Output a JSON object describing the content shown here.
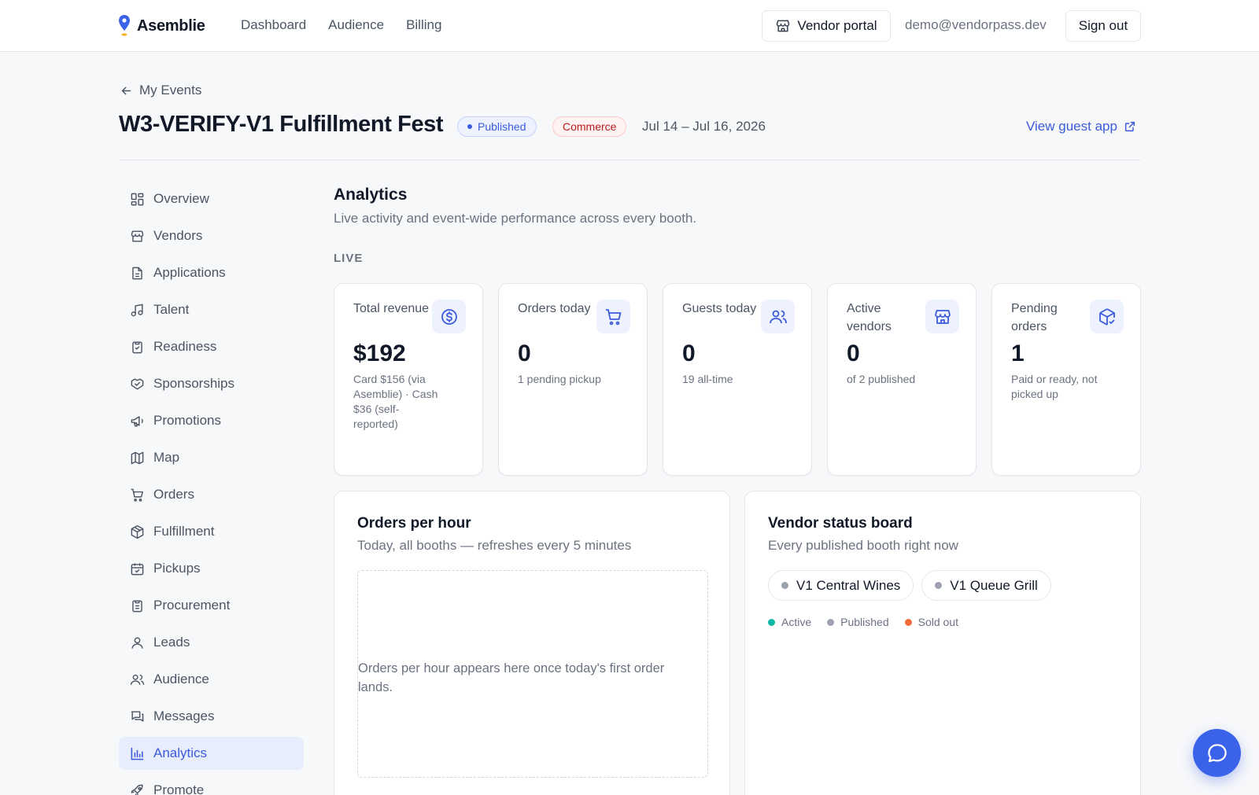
{
  "app": {
    "brand": "Asemblie",
    "nav": [
      "Dashboard",
      "Audience",
      "Billing"
    ],
    "vendor_portal_label": "Vendor portal",
    "user_email": "demo@vendorpass.dev",
    "sign_out_label": "Sign out"
  },
  "header": {
    "back_label": "My Events",
    "title": "W3-VERIFY-V1 Fulfillment Fest",
    "status_badge": "Published",
    "type_badge": "Commerce",
    "date_range": "Jul 14 – Jul 16, 2026",
    "guest_app_label": "View guest app"
  },
  "sidebar": {
    "items": [
      {
        "label": "Overview",
        "icon": "overview-icon"
      },
      {
        "label": "Vendors",
        "icon": "store-icon"
      },
      {
        "label": "Applications",
        "icon": "document-icon"
      },
      {
        "label": "Talent",
        "icon": "music-note-icon"
      },
      {
        "label": "Readiness",
        "icon": "clipboard-check-icon"
      },
      {
        "label": "Sponsorships",
        "icon": "handshake-icon"
      },
      {
        "label": "Promotions",
        "icon": "megaphone-icon"
      },
      {
        "label": "Map",
        "icon": "map-icon"
      },
      {
        "label": "Orders",
        "icon": "cart-icon"
      },
      {
        "label": "Fulfillment",
        "icon": "package-icon"
      },
      {
        "label": "Pickups",
        "icon": "calendar-check-icon"
      },
      {
        "label": "Procurement",
        "icon": "clipboard-list-icon"
      },
      {
        "label": "Leads",
        "icon": "user-icon"
      },
      {
        "label": "Audience",
        "icon": "users-icon"
      },
      {
        "label": "Messages",
        "icon": "messages-icon"
      },
      {
        "label": "Analytics",
        "icon": "bar-chart-icon",
        "active": true
      },
      {
        "label": "Promote",
        "icon": "rocket-icon"
      }
    ]
  },
  "analytics": {
    "title": "Analytics",
    "subtitle": "Live activity and event-wide performance across every booth.",
    "live_label": "LIVE",
    "stats": [
      {
        "label": "Total revenue",
        "value": "$192",
        "note": "Card $156 (via Asemblie) · Cash $36 (self-reported)",
        "icon": "dollar-icon"
      },
      {
        "label": "Orders today",
        "value": "0",
        "note": "1 pending pickup",
        "icon": "cart-icon"
      },
      {
        "label": "Guests today",
        "value": "0",
        "note": "19 all-time",
        "icon": "users-icon"
      },
      {
        "label": "Active vendors",
        "value": "0",
        "note": "of 2 published",
        "icon": "store-icon"
      },
      {
        "label": "Pending orders",
        "value": "1",
        "note": "Paid or ready, not picked up",
        "icon": "package-check-icon"
      }
    ],
    "orders_per_hour": {
      "title": "Orders per hour",
      "subtitle": "Today, all booths — refreshes every 5 minutes",
      "empty_text": "Orders per hour appears here once today's first order lands."
    },
    "vendor_board": {
      "title": "Vendor status board",
      "subtitle": "Every published booth right now",
      "vendors": [
        {
          "name": "V1 Central Wines",
          "status": "Published"
        },
        {
          "name": "V1 Queue Grill",
          "status": "Published"
        }
      ],
      "legend": [
        {
          "label": "Active",
          "color": "#10b9a5"
        },
        {
          "label": "Published",
          "color": "#9ca3af"
        },
        {
          "label": "Sold out",
          "color": "#f26b3a"
        }
      ]
    }
  },
  "colors": {
    "accent": "#3b5bdb",
    "fab": "#3b63ea"
  },
  "chat": {
    "icon": "chat-bubble-icon"
  }
}
